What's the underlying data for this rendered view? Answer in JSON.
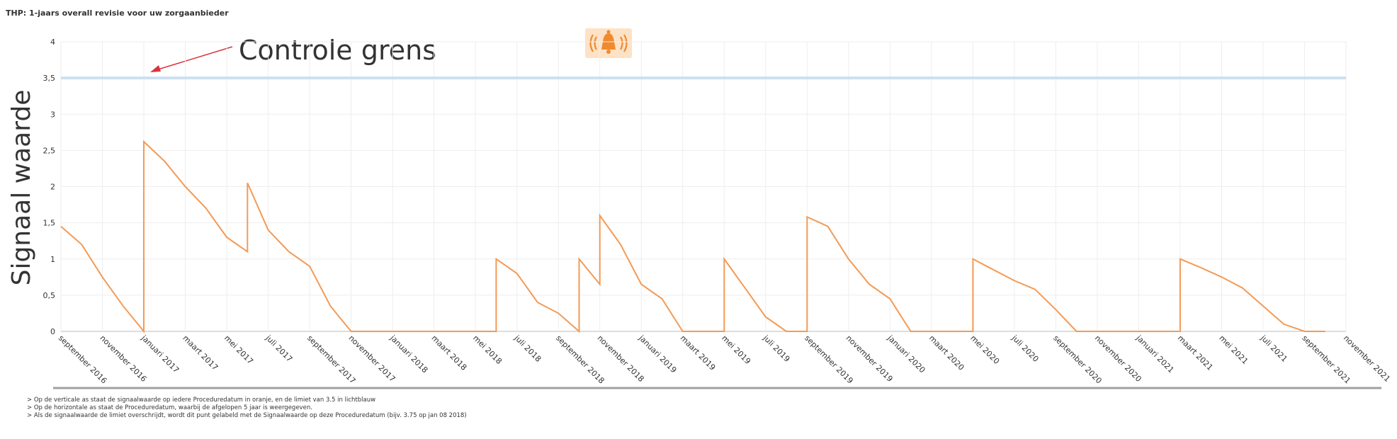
{
  "chart_data": {
    "type": "line",
    "title": "THP: 1-jaars overall revisie voor uw zorgaanbieder",
    "ylabel": "Signaal waarde",
    "annotation": "Controle grens",
    "limit": 3.5,
    "limit_color": "#cddff0",
    "ylim": [
      0,
      4
    ],
    "yticks": [
      0,
      {
        "value": 0.5,
        "label": "0,5"
      },
      1,
      {
        "value": 1.5,
        "label": "1,5"
      },
      2,
      {
        "value": 2.5,
        "label": "2,5"
      },
      3,
      {
        "value": 3.5,
        "label": "3,5"
      },
      4
    ],
    "xlim": [
      "2016-09",
      "2021-11"
    ],
    "xticks": [
      {
        "value": "2016-09",
        "label": "september 2016"
      },
      {
        "value": "2016-11",
        "label": "november 2016"
      },
      {
        "value": "2017-01",
        "label": "januari 2017"
      },
      {
        "value": "2017-03",
        "label": "maart 2017"
      },
      {
        "value": "2017-05",
        "label": "mei 2017"
      },
      {
        "value": "2017-07",
        "label": "juli 2017"
      },
      {
        "value": "2017-09",
        "label": "september 2017"
      },
      {
        "value": "2017-11",
        "label": "november 2017"
      },
      {
        "value": "2018-01",
        "label": "januari 2018"
      },
      {
        "value": "2018-03",
        "label": "maart 2018"
      },
      {
        "value": "2018-05",
        "label": "mei 2018"
      },
      {
        "value": "2018-07",
        "label": "juli 2018"
      },
      {
        "value": "2018-09",
        "label": "september 2018"
      },
      {
        "value": "2018-11",
        "label": "november 2018"
      },
      {
        "value": "2019-01",
        "label": "januari 2019"
      },
      {
        "value": "2019-03",
        "label": "maart 2019"
      },
      {
        "value": "2019-05",
        "label": "mei 2019"
      },
      {
        "value": "2019-07",
        "label": "juli 2019"
      },
      {
        "value": "2019-09",
        "label": "september 2019"
      },
      {
        "value": "2019-11",
        "label": "november 2019"
      },
      {
        "value": "2020-01",
        "label": "januari 2020"
      },
      {
        "value": "2020-03",
        "label": "maart 2020"
      },
      {
        "value": "2020-05",
        "label": "mei 2020"
      },
      {
        "value": "2020-07",
        "label": "juli 2020"
      },
      {
        "value": "2020-09",
        "label": "september 2020"
      },
      {
        "value": "2020-11",
        "label": "november 2020"
      },
      {
        "value": "2021-01",
        "label": "januari 2021"
      },
      {
        "value": "2021-03",
        "label": "maart 2021"
      },
      {
        "value": "2021-05",
        "label": "mei 2021"
      },
      {
        "value": "2021-07",
        "label": "juli 2021"
      },
      {
        "value": "2021-09",
        "label": "september 2021"
      },
      {
        "value": "2021-11",
        "label": "november 2021"
      }
    ],
    "grid": true,
    "series": [
      {
        "color": "#f39a55",
        "x": [
          "2016-09",
          "2016-10",
          "2016-11",
          "2016-12",
          "2017-01",
          "2017-01",
          "2017-01",
          "2017-01",
          "2017-01",
          "2017-02",
          "2017-03",
          "2017-04",
          "2017-05",
          "2017-06",
          "2017-06",
          "2017-07",
          "2017-08",
          "2017-09",
          "2017-10",
          "2017-11",
          "2018-06",
          "2018-06",
          "2018-07",
          "2018-08",
          "2018-09",
          "2018-10",
          "2018-10",
          "2018-11",
          "2018-11",
          "2018-12",
          "2019-01",
          "2019-02",
          "2019-03",
          "2019-05",
          "2019-05",
          "2019-06",
          "2019-07",
          "2019-08",
          "2019-09",
          "2019-09",
          "2019-09",
          "2019-09",
          "2019-10",
          "2019-11",
          "2019-12",
          "2020-01",
          "2020-02",
          "2020-05",
          "2020-05",
          "2020-06",
          "2020-07",
          "2020-08",
          "2020-09",
          "2020-10",
          "2021-03",
          "2021-03",
          "2021-04",
          "2021-05",
          "2021-06",
          "2021-07",
          "2021-08",
          "2021-09",
          "2021-10"
        ],
        "values": [
          1.45,
          1.2,
          0.75,
          0.35,
          0,
          0.97,
          0.7,
          1.65,
          2.62,
          2.35,
          2.0,
          1.7,
          1.3,
          1.1,
          2.05,
          1.4,
          1.1,
          0.9,
          0.35,
          0,
          0,
          1.0,
          0.8,
          0.4,
          0.25,
          0,
          1.0,
          0.65,
          1.6,
          1.2,
          0.65,
          0.45,
          0,
          0,
          1.0,
          0.6,
          0.2,
          0,
          0,
          1.0,
          0.65,
          1.58,
          1.45,
          1.0,
          0.65,
          0.45,
          0,
          0,
          1.0,
          0.85,
          0.7,
          0.58,
          0.3,
          0,
          0,
          1.0,
          0.88,
          0.75,
          0.6,
          0.35,
          0.1,
          0,
          0
        ]
      }
    ]
  },
  "footer": {
    "notes": [
      "> Op de verticale as staat de signaalwaarde op iedere Proceduredatum in oranje, en de limiet van 3.5 in lichtblauw",
      "> Op de horizontale as staat de Proceduredatum, waarbij de afgelopen 5 jaar is weergegeven.",
      "> Als de signaalwaarde de limiet overschrijdt, wordt dit punt gelabeld met de Signaalwaarde op deze Proceduredatum (bijv. 3.75 op jan 08 2018)"
    ]
  }
}
